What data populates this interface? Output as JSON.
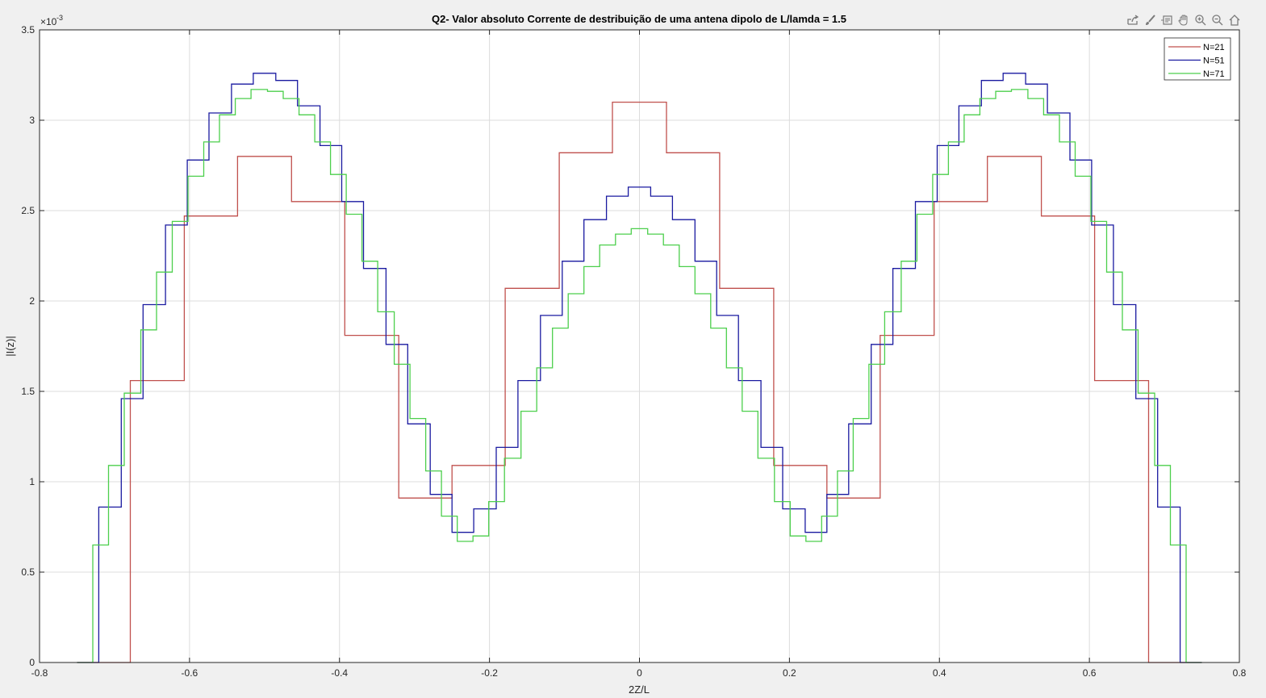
{
  "toolbar": {
    "icons": [
      "export-icon",
      "brush-icon",
      "datatip-icon",
      "pan-icon",
      "zoom-in-icon",
      "zoom-out-icon",
      "home-icon"
    ]
  },
  "chart_data": {
    "type": "line",
    "title": "Q2- Valor absoluto Corrente de destribuição de uma antena dipolo de L/lamda = 1.5",
    "xlabel": "2Z/L",
    "ylabel": "|I(z)|",
    "exponent_label": "×10",
    "exponent_power": "-3",
    "xlim": [
      -0.8,
      0.8
    ],
    "ylim": [
      0,
      3.5
    ],
    "xticks": [
      "-0.8",
      "-0.6",
      "-0.4",
      "-0.2",
      "0",
      "0.2",
      "0.4",
      "0.6",
      "0.8"
    ],
    "yticks": [
      "0",
      "0.5",
      "1",
      "1.5",
      "2",
      "2.5",
      "3",
      "3.5"
    ],
    "grid": true,
    "legend_position": "top-right",
    "step": true,
    "series": [
      {
        "name": "N=21",
        "color": "#c0504d",
        "edges": [
          -0.75,
          -0.679,
          -0.607,
          -0.536,
          -0.464,
          -0.393,
          -0.321,
          -0.25,
          -0.179,
          -0.107,
          -0.036,
          0.036,
          0.107,
          0.179,
          0.25,
          0.321,
          0.393,
          0.464,
          0.536,
          0.607,
          0.679,
          0.75
        ],
        "values": [
          0,
          1.56,
          2.47,
          2.8,
          2.55,
          1.81,
          0.91,
          1.09,
          2.07,
          2.82,
          3.1,
          2.82,
          2.07,
          1.09,
          0.91,
          1.81,
          2.55,
          2.8,
          2.47,
          1.56,
          0
        ]
      },
      {
        "name": "N=51",
        "color": "#1a1aa0",
        "edges": [
          -0.75,
          -0.721,
          -0.691,
          -0.662,
          -0.632,
          -0.603,
          -0.574,
          -0.544,
          -0.515,
          -0.485,
          -0.456,
          -0.426,
          -0.397,
          -0.368,
          -0.338,
          -0.309,
          -0.279,
          -0.25,
          -0.221,
          -0.191,
          -0.162,
          -0.132,
          -0.103,
          -0.074,
          -0.044,
          -0.015,
          0.015,
          0.044,
          0.074,
          0.103,
          0.132,
          0.162,
          0.191,
          0.221,
          0.25,
          0.279,
          0.309,
          0.338,
          0.368,
          0.397,
          0.426,
          0.456,
          0.485,
          0.515,
          0.544,
          0.574,
          0.603,
          0.632,
          0.662,
          0.691,
          0.721,
          0.75
        ],
        "values": [
          0,
          0.86,
          1.46,
          1.98,
          2.42,
          2.78,
          3.04,
          3.2,
          3.26,
          3.22,
          3.08,
          2.86,
          2.55,
          2.18,
          1.76,
          1.32,
          0.93,
          0.72,
          0.85,
          1.19,
          1.56,
          1.92,
          2.22,
          2.45,
          2.58,
          2.63,
          2.58,
          2.45,
          2.22,
          1.92,
          1.56,
          1.19,
          0.85,
          0.72,
          0.93,
          1.32,
          1.76,
          2.18,
          2.55,
          2.86,
          3.08,
          3.22,
          3.26,
          3.2,
          3.04,
          2.78,
          2.42,
          1.98,
          1.46,
          0.86,
          0
        ]
      },
      {
        "name": "N=71",
        "color": "#4ccf4c",
        "edges": [
          -0.75,
          -0.729,
          -0.708,
          -0.687,
          -0.665,
          -0.644,
          -0.623,
          -0.602,
          -0.581,
          -0.56,
          -0.539,
          -0.518,
          -0.496,
          -0.475,
          -0.454,
          -0.433,
          -0.412,
          -0.391,
          -0.37,
          -0.349,
          -0.327,
          -0.306,
          -0.285,
          -0.264,
          -0.243,
          -0.222,
          -0.201,
          -0.18,
          -0.158,
          -0.137,
          -0.116,
          -0.095,
          -0.074,
          -0.053,
          -0.032,
          -0.011,
          0.011,
          0.032,
          0.053,
          0.074,
          0.095,
          0.116,
          0.137,
          0.158,
          0.18,
          0.201,
          0.222,
          0.243,
          0.264,
          0.285,
          0.306,
          0.327,
          0.349,
          0.37,
          0.391,
          0.412,
          0.433,
          0.454,
          0.475,
          0.496,
          0.518,
          0.539,
          0.56,
          0.581,
          0.602,
          0.623,
          0.644,
          0.665,
          0.687,
          0.708,
          0.729,
          0.75
        ],
        "values": [
          0,
          0.65,
          1.09,
          1.49,
          1.84,
          2.16,
          2.44,
          2.69,
          2.88,
          3.03,
          3.12,
          3.17,
          3.16,
          3.12,
          3.03,
          2.88,
          2.7,
          2.48,
          2.22,
          1.94,
          1.65,
          1.35,
          1.06,
          0.81,
          0.67,
          0.7,
          0.89,
          1.13,
          1.39,
          1.63,
          1.85,
          2.04,
          2.19,
          2.31,
          2.37,
          2.4,
          2.37,
          2.31,
          2.19,
          2.04,
          1.85,
          1.63,
          1.39,
          1.13,
          0.89,
          0.7,
          0.67,
          0.81,
          1.06,
          1.35,
          1.65,
          1.94,
          2.22,
          2.48,
          2.7,
          2.88,
          3.03,
          3.12,
          3.16,
          3.17,
          3.12,
          3.03,
          2.88,
          2.69,
          2.44,
          2.16,
          1.84,
          1.49,
          1.09,
          0.65,
          0
        ]
      }
    ]
  }
}
